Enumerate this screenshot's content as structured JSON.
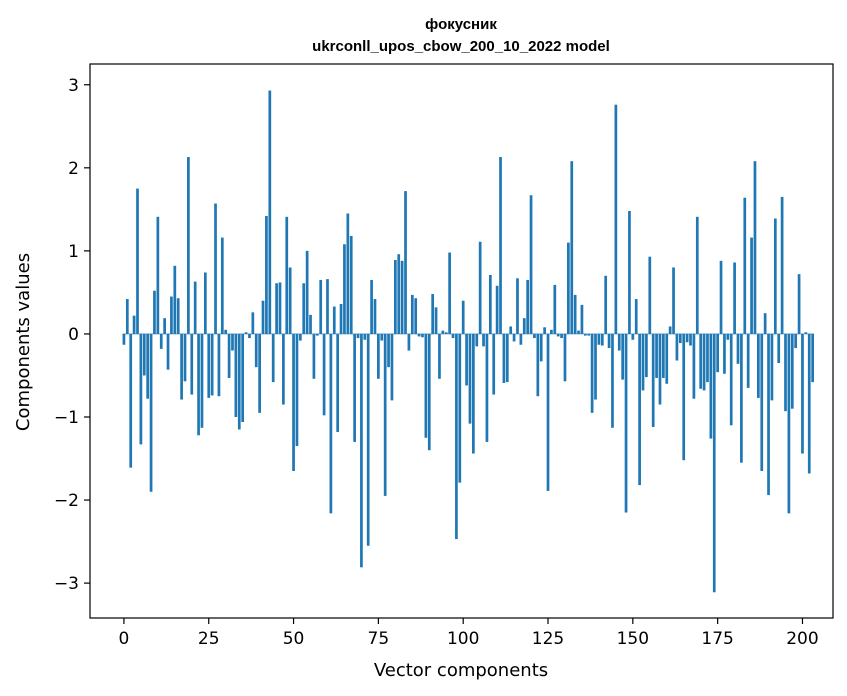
{
  "chart_data": {
    "type": "bar",
    "title_line1": "фокусник",
    "title_line2": "ukrconll_upos_cbow_200_10_2022 model",
    "xlabel": "Vector components",
    "ylabel": "Components values",
    "xlim": [
      -10,
      209
    ],
    "ylim": [
      -3.42,
      3.25
    ],
    "xticks": [
      0,
      25,
      50,
      75,
      100,
      125,
      150,
      175,
      200
    ],
    "yticks": [
      -3,
      -2,
      -1,
      0,
      1,
      2,
      3
    ],
    "ytick_labels": [
      "−3",
      "−2",
      "−1",
      "0",
      "1",
      "2",
      "3"
    ],
    "grid": false,
    "legend": "none",
    "color": "#1f77b4",
    "values": [
      -0.13,
      0.42,
      -1.61,
      0.22,
      1.75,
      -1.33,
      -0.5,
      -0.78,
      -1.9,
      0.52,
      1.41,
      -0.18,
      0.19,
      -0.43,
      0.45,
      0.82,
      0.43,
      -0.79,
      -0.57,
      2.13,
      -0.73,
      0.63,
      -1.22,
      -1.13,
      0.74,
      -0.77,
      -0.74,
      1.57,
      -0.75,
      1.16,
      0.05,
      -0.53,
      -0.2,
      -1.0,
      -1.15,
      -1.06,
      0.02,
      -0.05,
      0.26,
      -0.4,
      -0.95,
      0.4,
      1.42,
      2.93,
      -0.58,
      0.61,
      0.62,
      -0.85,
      1.41,
      0.8,
      -1.65,
      -1.35,
      -0.08,
      0.61,
      1.0,
      0.23,
      -0.54,
      -0.02,
      0.65,
      -0.98,
      0.66,
      -2.16,
      0.33,
      -1.18,
      0.36,
      1.08,
      1.45,
      1.18,
      -1.3,
      -0.05,
      -2.81,
      -0.07,
      -2.55,
      0.65,
      0.42,
      -0.54,
      -0.08,
      -1.95,
      -0.4,
      -0.8,
      0.89,
      0.96,
      0.88,
      1.72,
      -0.2,
      0.47,
      0.43,
      -0.03,
      -0.04,
      -1.25,
      -1.4,
      0.48,
      0.32,
      -0.54,
      0.04,
      0.02,
      0.98,
      -0.05,
      -2.47,
      -1.79,
      0.4,
      -0.62,
      -1.08,
      -1.44,
      -0.15,
      1.11,
      -0.15,
      -1.3,
      0.71,
      -0.73,
      0.58,
      2.13,
      -0.59,
      -0.58,
      0.09,
      -0.09,
      0.67,
      -0.13,
      0.19,
      0.65,
      1.67,
      -0.05,
      -0.75,
      -0.33,
      0.08,
      -1.89,
      0.05,
      0.59,
      -0.03,
      -0.05,
      -0.57,
      1.1,
      2.08,
      0.47,
      0.04,
      0.35,
      -0.02,
      -0.02,
      -0.95,
      -0.79,
      -0.13,
      -0.14,
      0.7,
      -0.17,
      -1.13,
      2.76,
      -0.2,
      -0.55,
      -2.15,
      1.48,
      -0.07,
      0.42,
      -1.82,
      -0.68,
      -0.52,
      0.93,
      -1.12,
      -0.53,
      -0.85,
      -0.53,
      -0.6,
      0.09,
      0.8,
      -0.32,
      -0.11,
      -1.52,
      -0.1,
      -0.14,
      -0.78,
      1.41,
      -0.66,
      -0.68,
      -0.58,
      -1.26,
      -3.11,
      -0.46,
      0.88,
      -0.48,
      -0.07,
      -1.1,
      0.86,
      -0.36,
      -1.55,
      1.64,
      -0.65,
      1.16,
      2.08,
      -0.77,
      -1.65,
      0.25,
      -1.94,
      -0.8,
      1.39,
      -0.35,
      1.65,
      -0.93,
      -2.16,
      -0.9,
      -0.17,
      0.72,
      -1.44,
      0.02,
      -1.68,
      -0.58
    ]
  }
}
